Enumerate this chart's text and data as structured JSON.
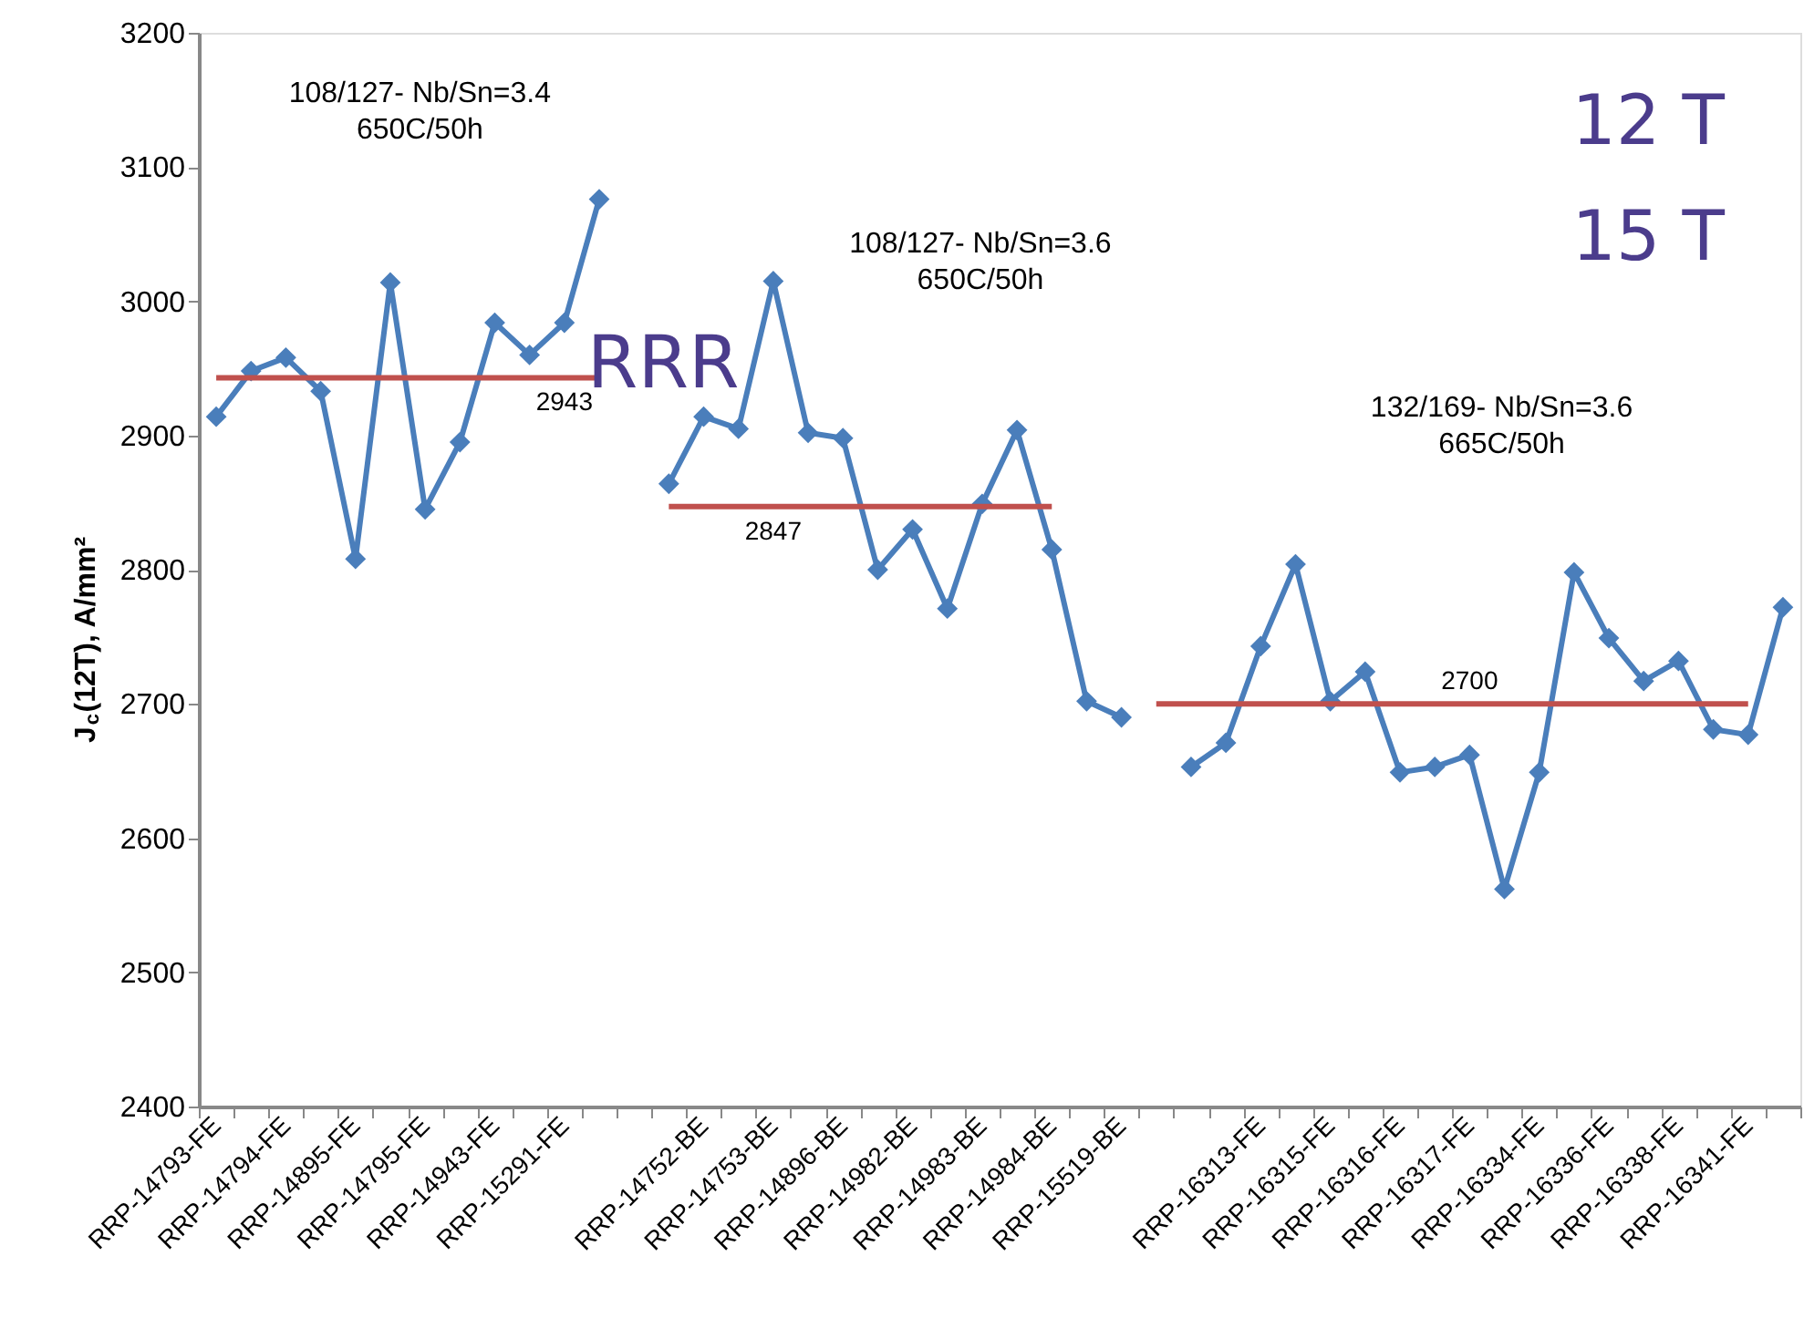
{
  "chart_data": {
    "type": "line",
    "ylabel": "J$_{c}$(12T), A/mm²",
    "categories": [
      "RRP-14793-FE",
      null,
      "RRP-14794-FE",
      null,
      "RRP-14895-FE",
      null,
      "RRP-14795-FE",
      null,
      "RRP-14943-FE",
      null,
      "RRP-15291-FE",
      null,
      null,
      null,
      "RRP-14752-BE",
      null,
      "RRP-14753-BE",
      null,
      "RRP-14896-BE",
      null,
      "RRP-14982-BE",
      null,
      "RRP-14983-BE",
      null,
      "RRP-14984-BE",
      null,
      "RRP-15519-BE",
      null,
      null,
      null,
      "RRP-16313-FE",
      null,
      "RRP-16315-FE",
      null,
      "RRP-16316-FE",
      null,
      "RRP-16317-FE",
      null,
      "RRP-16334-FE",
      null,
      "RRP-16336-FE",
      null,
      "RRP-16338-FE",
      null,
      "RRP-16341-FE",
      null
    ],
    "series": [
      {
        "type": "line",
        "marker": "diamond",
        "color": "#4a7ebb",
        "values": [
          2914,
          2948,
          2958,
          2933,
          2808,
          3014,
          2845,
          2895,
          2984,
          2960,
          2984,
          3076,
          null,
          2864,
          2914,
          2905,
          3015,
          2902,
          2898,
          2800,
          2830,
          2771,
          2849,
          2904,
          2815,
          2702,
          2690,
          null,
          2653,
          2671,
          2743,
          2804,
          2702,
          2724,
          2649,
          2653,
          2662,
          2562,
          2649,
          2798,
          2749,
          2717,
          2732,
          2681,
          2677,
          2772
        ]
      },
      {
        "type": "line",
        "marker": "none",
        "color": "#c0504d",
        "values": [
          2943,
          2943,
          2943,
          2943,
          2943,
          2943,
          2943,
          2943,
          2943,
          2943,
          2943,
          2943,
          null,
          null,
          null,
          null,
          null,
          null,
          null,
          null,
          null,
          null,
          null,
          null,
          null,
          null,
          null,
          null,
          null,
          null,
          null,
          null,
          null,
          null,
          null,
          null,
          null,
          null,
          null,
          null,
          null,
          null,
          null,
          null,
          null,
          null
        ],
        "value_labels": [
          null,
          null,
          null,
          null,
          null,
          null,
          null,
          null,
          null,
          null,
          "2943",
          null,
          null,
          null,
          null,
          null,
          null,
          null,
          null,
          null,
          null,
          null,
          null,
          null,
          null,
          null,
          null,
          null,
          null,
          null,
          null,
          null,
          null,
          null,
          null,
          null,
          null,
          null,
          null,
          null,
          null,
          null,
          null,
          null,
          null,
          null
        ]
      },
      {
        "type": "line",
        "marker": "none",
        "color": "#c0504d",
        "values": [
          null,
          null,
          null,
          null,
          null,
          null,
          null,
          null,
          null,
          null,
          null,
          null,
          null,
          2847,
          2847,
          2847,
          2847,
          2847,
          2847,
          2847,
          2847,
          2847,
          2847,
          2847,
          2847,
          null,
          null,
          null,
          null,
          null,
          null,
          null,
          null,
          null,
          null,
          null,
          null,
          null,
          null,
          null,
          null,
          null,
          null,
          null,
          null,
          null
        ],
        "value_labels": [
          null,
          null,
          null,
          null,
          null,
          null,
          null,
          null,
          null,
          null,
          null,
          null,
          null,
          null,
          null,
          null,
          "2847",
          null,
          null,
          null,
          null,
          null,
          null,
          null,
          null,
          null,
          null,
          null,
          null,
          null,
          null,
          null,
          null,
          null,
          null,
          null,
          null,
          null,
          null,
          null,
          null,
          null,
          null,
          null,
          null,
          null
        ]
      },
      {
        "type": "line",
        "marker": "none",
        "color": "#c0504d",
        "values": [
          null,
          null,
          null,
          null,
          null,
          null,
          null,
          null,
          null,
          null,
          null,
          null,
          null,
          null,
          null,
          null,
          null,
          null,
          null,
          null,
          null,
          null,
          null,
          null,
          null,
          null,
          null,
          2700,
          2700,
          2700,
          2700,
          2700,
          2700,
          2700,
          2700,
          2700,
          2700,
          2700,
          2700,
          2700,
          2700,
          2700,
          2700,
          2700,
          2700,
          null
        ],
        "value_labels": [
          null,
          null,
          null,
          null,
          null,
          null,
          null,
          null,
          null,
          null,
          null,
          null,
          null,
          null,
          null,
          null,
          null,
          null,
          null,
          null,
          null,
          null,
          null,
          null,
          null,
          null,
          null,
          null,
          null,
          null,
          null,
          null,
          null,
          null,
          null,
          null,
          "2700",
          null,
          null,
          null,
          null,
          null,
          null,
          null,
          null,
          null
        ]
      }
    ],
    "ylim": [
      2400,
      3200
    ],
    "yticks": [
      2400,
      2500,
      2600,
      2700,
      2800,
      2900,
      3000,
      3100,
      3200
    ],
    "grid": false,
    "annotations": [
      "108/127- Nb/Sn=3.4\n650C/50h",
      "108/127- Nb/Sn=3.6\n650C/50h",
      "132/169- Nb/Sn=3.6\n665C/50h",
      "RRR",
      "12 T",
      "15 T"
    ]
  }
}
